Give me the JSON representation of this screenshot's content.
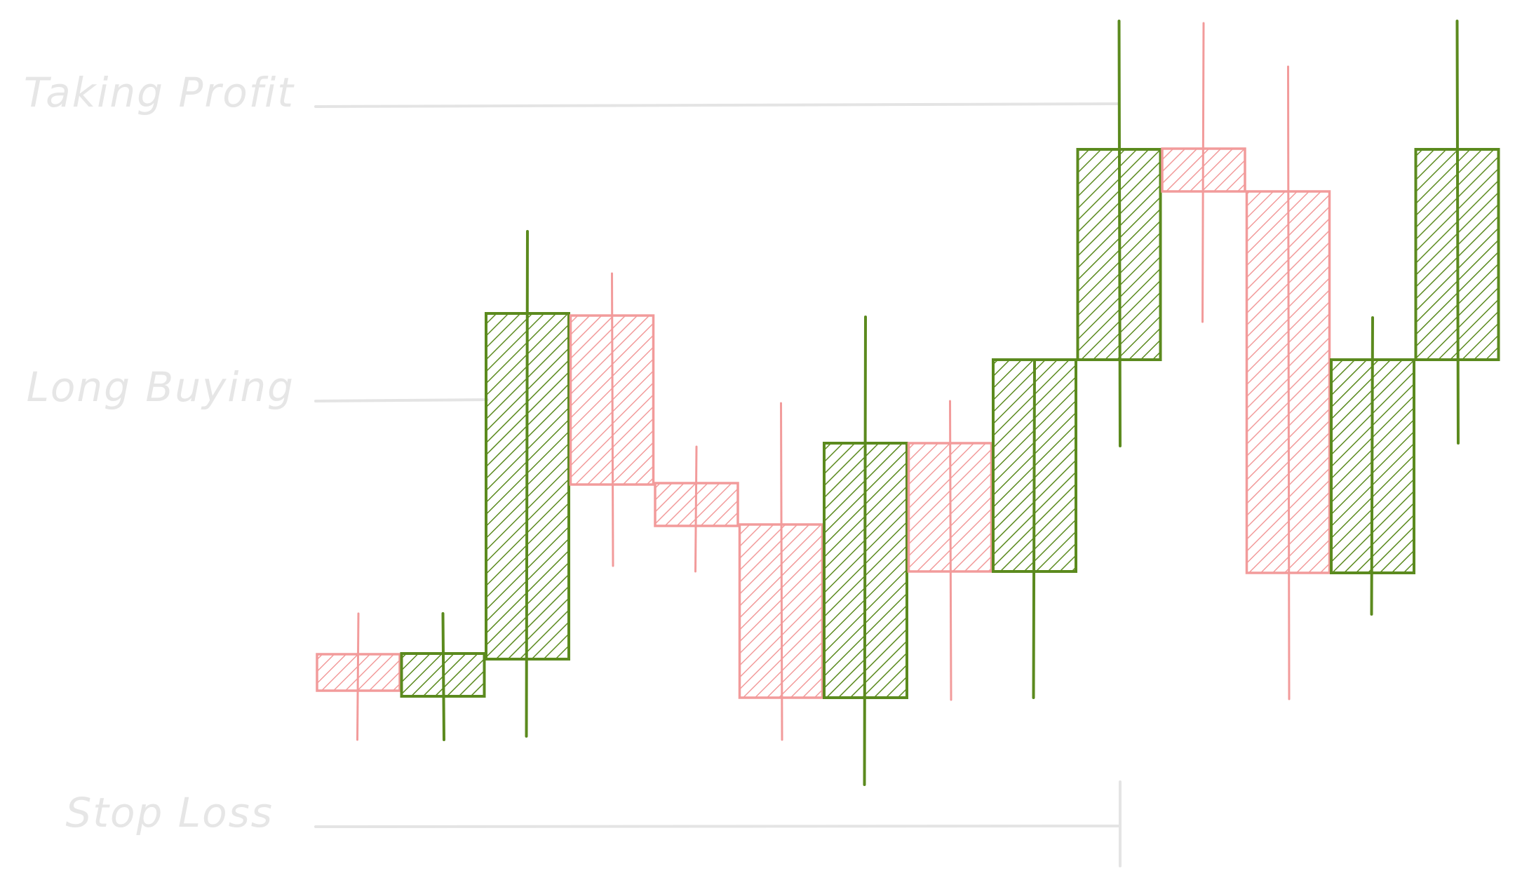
{
  "colors": {
    "bull": "#5b8a1e",
    "bear": "#f29b9b",
    "level_line": "#e4e4e4",
    "label": "#e6e6e6",
    "background": "#ffffff"
  },
  "chart_data": {
    "type": "candlestick",
    "title": "",
    "xlabel": "",
    "ylabel": "",
    "ylim": [
      0,
      1265
    ],
    "grid": false,
    "levels": [
      {
        "name": "Taking Profit",
        "value": 1113
      },
      {
        "name": "Long Buying",
        "value": 693
      },
      {
        "name": "Stop Loss",
        "value": 86
      }
    ],
    "candles": [
      {
        "open": 332,
        "close": 280,
        "high": 390,
        "low": 210,
        "direction": "down"
      },
      {
        "open": 272,
        "close": 333,
        "high": 390,
        "low": 210,
        "direction": "up"
      },
      {
        "open": 325,
        "close": 818,
        "high": 935,
        "low": 215,
        "direction": "up"
      },
      {
        "open": 815,
        "close": 574,
        "high": 875,
        "low": 458,
        "direction": "down"
      },
      {
        "open": 576,
        "close": 515,
        "high": 628,
        "low": 450,
        "direction": "down"
      },
      {
        "open": 517,
        "close": 270,
        "high": 690,
        "low": 210,
        "direction": "down"
      },
      {
        "open": 270,
        "close": 633,
        "high": 813,
        "low": 146,
        "direction": "up"
      },
      {
        "open": 633,
        "close": 450,
        "high": 693,
        "low": 267,
        "direction": "down"
      },
      {
        "open": 450,
        "close": 752,
        "high": 752,
        "low": 270,
        "direction": "up"
      },
      {
        "open": 752,
        "close": 1052,
        "high": 1235,
        "low": 629,
        "direction": "up"
      },
      {
        "open": 1053,
        "close": 992,
        "high": 1232,
        "low": 806,
        "direction": "down"
      },
      {
        "open": 992,
        "close": 448,
        "high": 1170,
        "low": 268,
        "direction": "down"
      },
      {
        "open": 448,
        "close": 752,
        "high": 812,
        "low": 389,
        "direction": "up"
      },
      {
        "open": 752,
        "close": 1052,
        "high": 1235,
        "low": 633,
        "direction": "up"
      }
    ]
  }
}
